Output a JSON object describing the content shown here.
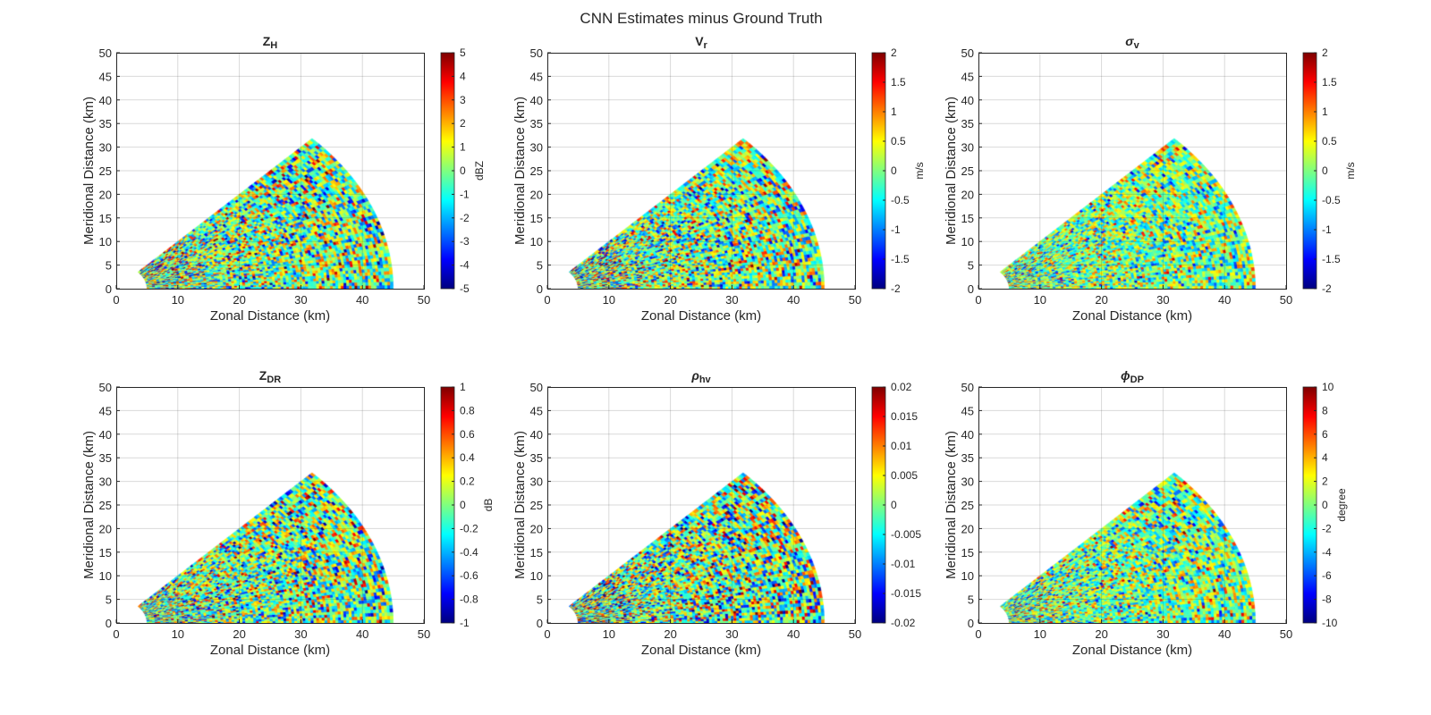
{
  "figure_title": "CNN Estimates minus Ground Truth",
  "chart_data": [
    {
      "type": "heatmap",
      "title_main": "Z",
      "title_sub": "H",
      "title_italic": false,
      "colorbar_label": "dBZ",
      "clim": [
        -5,
        5
      ],
      "cticks": [
        "-5",
        "-4",
        "-3",
        "-2",
        "-1",
        "0",
        "1",
        "2",
        "3",
        "4",
        "5"
      ],
      "xlabel": "Zonal Distance (km)",
      "ylabel": "Meridional Distance (km)",
      "xlim": [
        0,
        50
      ],
      "ylim": [
        0,
        50
      ],
      "xticks": [
        "0",
        "10",
        "20",
        "30",
        "40",
        "50"
      ],
      "yticks": [
        "0",
        "5",
        "10",
        "15",
        "20",
        "25",
        "30",
        "35",
        "40",
        "45",
        "50"
      ],
      "sector": {
        "r_min_km": 5,
        "r_max_km": 45,
        "az_min_deg": 0,
        "az_max_deg": 45
      },
      "noise_std_fraction": 0.2,
      "grid": true,
      "colormap": "jet"
    },
    {
      "type": "heatmap",
      "title_main": "V",
      "title_sub": "r",
      "title_italic": false,
      "colorbar_label": "m/s",
      "clim": [
        -2,
        2
      ],
      "cticks": [
        "-2",
        "-1.5",
        "-1",
        "-0.5",
        "0",
        "0.5",
        "1",
        "1.5",
        "2"
      ],
      "xlabel": "Zonal Distance (km)",
      "ylabel": "Meridional Distance (km)",
      "xlim": [
        0,
        50
      ],
      "ylim": [
        0,
        50
      ],
      "xticks": [
        "0",
        "10",
        "20",
        "30",
        "40",
        "50"
      ],
      "yticks": [
        "0",
        "5",
        "10",
        "15",
        "20",
        "25",
        "30",
        "35",
        "40",
        "45",
        "50"
      ],
      "sector": {
        "r_min_km": 5,
        "r_max_km": 45,
        "az_min_deg": 0,
        "az_max_deg": 45
      },
      "noise_std_fraction": 0.2,
      "grid": true,
      "colormap": "jet"
    },
    {
      "type": "heatmap",
      "title_main": "σ",
      "title_sub": "v",
      "title_italic": true,
      "colorbar_label": "m/s",
      "clim": [
        -2,
        2
      ],
      "cticks": [
        "-2",
        "-1.5",
        "-1",
        "-0.5",
        "0",
        "0.5",
        "1",
        "1.5",
        "2"
      ],
      "xlabel": "Zonal Distance (km)",
      "ylabel": "Meridional Distance (km)",
      "xlim": [
        0,
        50
      ],
      "ylim": [
        0,
        50
      ],
      "xticks": [
        "0",
        "10",
        "20",
        "30",
        "40",
        "50"
      ],
      "yticks": [
        "0",
        "5",
        "10",
        "15",
        "20",
        "25",
        "30",
        "35",
        "40",
        "45",
        "50"
      ],
      "sector": {
        "r_min_km": 5,
        "r_max_km": 45,
        "az_min_deg": 0,
        "az_max_deg": 45
      },
      "noise_std_fraction": 0.16,
      "grid": true,
      "colormap": "jet"
    },
    {
      "type": "heatmap",
      "title_main": "Z",
      "title_sub": "DR",
      "title_italic": false,
      "colorbar_label": "dB",
      "clim": [
        -1,
        1
      ],
      "cticks": [
        "-1",
        "-0.8",
        "-0.6",
        "-0.4",
        "-0.2",
        "0",
        "0.2",
        "0.4",
        "0.6",
        "0.8",
        "1"
      ],
      "xlabel": "Zonal Distance (km)",
      "ylabel": "Meridional Distance (km)",
      "xlim": [
        0,
        50
      ],
      "ylim": [
        0,
        50
      ],
      "xticks": [
        "0",
        "10",
        "20",
        "30",
        "40",
        "50"
      ],
      "yticks": [
        "0",
        "5",
        "10",
        "15",
        "20",
        "25",
        "30",
        "35",
        "40",
        "45",
        "50"
      ],
      "sector": {
        "r_min_km": 5,
        "r_max_km": 45,
        "az_min_deg": 0,
        "az_max_deg": 45
      },
      "noise_std_fraction": 0.2,
      "grid": true,
      "colormap": "jet"
    },
    {
      "type": "heatmap",
      "title_main": "ρ",
      "title_sub": "hv",
      "title_italic": true,
      "colorbar_label": "",
      "clim": [
        -0.02,
        0.02
      ],
      "cticks": [
        "-0.02",
        "-0.015",
        "-0.01",
        "-0.005",
        "0",
        "0.005",
        "0.01",
        "0.015",
        "0.02"
      ],
      "xlabel": "Zonal Distance (km)",
      "ylabel": "Meridional Distance (km)",
      "xlim": [
        0,
        50
      ],
      "ylim": [
        0,
        50
      ],
      "xticks": [
        "0",
        "10",
        "20",
        "30",
        "40",
        "50"
      ],
      "yticks": [
        "0",
        "5",
        "10",
        "15",
        "20",
        "25",
        "30",
        "35",
        "40",
        "45",
        "50"
      ],
      "sector": {
        "r_min_km": 5,
        "r_max_km": 45,
        "az_min_deg": 0,
        "az_max_deg": 45
      },
      "noise_std_fraction": 0.22,
      "grid": true,
      "colormap": "jet"
    },
    {
      "type": "heatmap",
      "title_main": "ϕ",
      "title_sub": "DP",
      "title_italic": true,
      "colorbar_label": "degree",
      "clim": [
        -10,
        10
      ],
      "cticks": [
        "-10",
        "-8",
        "-6",
        "-4",
        "-2",
        "0",
        "2",
        "4",
        "6",
        "8",
        "10"
      ],
      "xlabel": "Zonal Distance (km)",
      "ylabel": "Meridional Distance (km)",
      "xlim": [
        0,
        50
      ],
      "ylim": [
        0,
        50
      ],
      "xticks": [
        "0",
        "10",
        "20",
        "30",
        "40",
        "50"
      ],
      "yticks": [
        "0",
        "5",
        "10",
        "15",
        "20",
        "25",
        "30",
        "35",
        "40",
        "45",
        "50"
      ],
      "sector": {
        "r_min_km": 5,
        "r_max_km": 45,
        "az_min_deg": 0,
        "az_max_deg": 45
      },
      "noise_std_fraction": 0.17,
      "grid": true,
      "colormap": "jet"
    }
  ]
}
